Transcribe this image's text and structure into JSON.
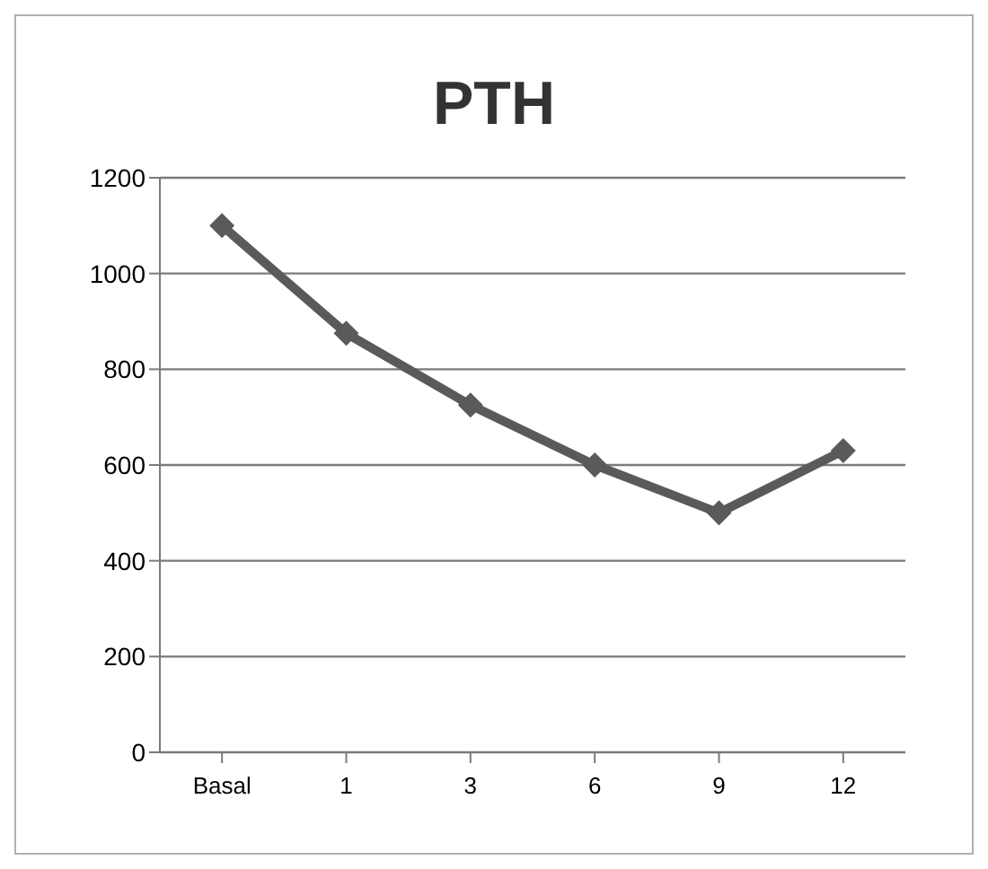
{
  "chart_data": {
    "type": "line",
    "title": "PTH",
    "categories": [
      "Basal",
      "1",
      "3",
      "6",
      "9",
      "12"
    ],
    "series": [
      {
        "color": "#5a5a5a",
        "values": [
          1100,
          875,
          725,
          600,
          500,
          630
        ]
      }
    ],
    "ylim": [
      0,
      1200
    ],
    "yticks": [
      0,
      200,
      400,
      600,
      800,
      1000,
      1200
    ],
    "grid": "y",
    "legend": false,
    "marker": "diamond",
    "line_style": "solid"
  }
}
